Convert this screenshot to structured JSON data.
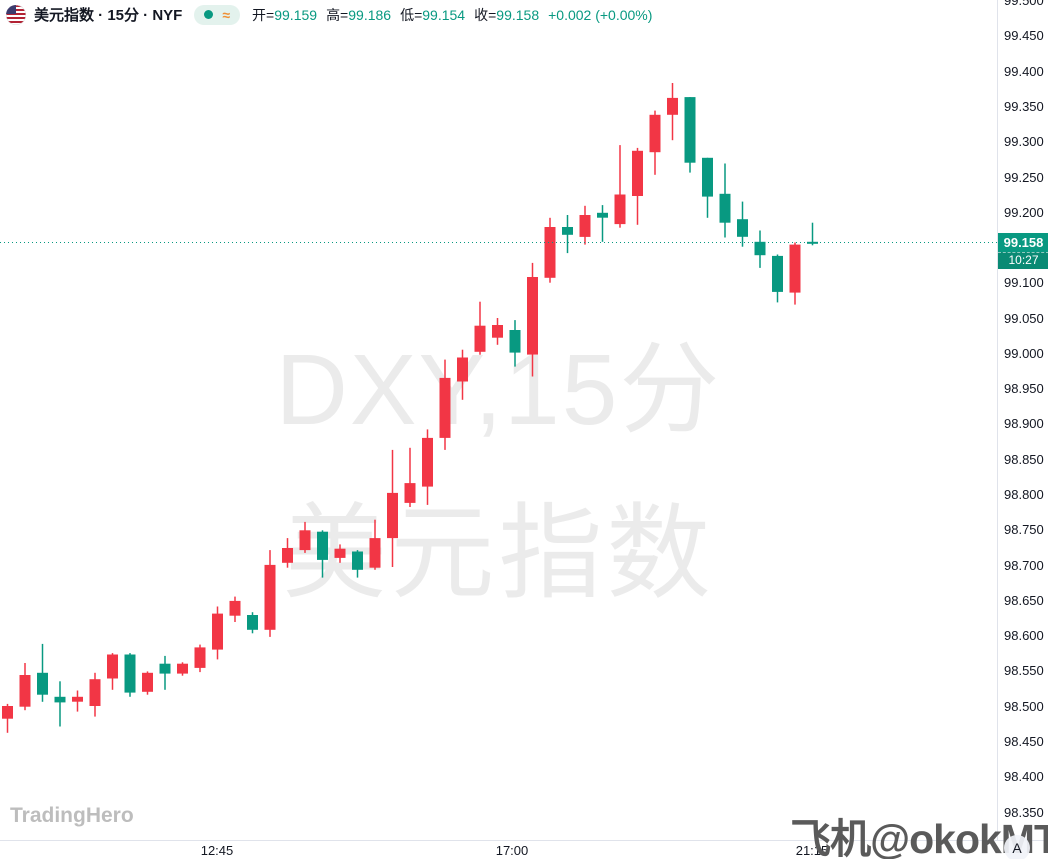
{
  "header": {
    "symbol_title": "美元指数 · 15分 · NYF",
    "approx_symbol": "≈",
    "ohlc": {
      "open_label": "开=",
      "open": "99.159",
      "high_label": "高=",
      "high": "99.186",
      "low_label": "低=",
      "low": "99.154",
      "close_label": "收=",
      "close": "99.158",
      "change": "+0.002 (+0.00%)"
    }
  },
  "watermark": {
    "line1": "DXY,15分",
    "line2": "美元指数"
  },
  "brand_watermark": "TradingHero",
  "overlay_watermark": "飞机@okokMT",
  "auto_button_label": "A",
  "price_axis": {
    "labels": [
      "99.500",
      "99.450",
      "99.400",
      "99.350",
      "99.300",
      "99.250",
      "99.200",
      "99.100",
      "99.050",
      "99.000",
      "98.950",
      "98.900",
      "98.850",
      "98.800",
      "98.750",
      "98.700",
      "98.650",
      "98.600",
      "98.550",
      "98.500",
      "98.450",
      "98.400",
      "98.350"
    ],
    "badge": {
      "price": "99.158",
      "countdown": "10:27"
    }
  },
  "time_axis": {
    "ticks": [
      {
        "label": "12:45",
        "x": 217
      },
      {
        "label": "17:00",
        "x": 512
      },
      {
        "label": "21:15",
        "x": 812
      }
    ]
  },
  "colors": {
    "up": "#f23645",
    "down": "#089981",
    "accent": "#089981",
    "badge_bg": "#089981",
    "countdown_bg": "#0a8a74",
    "axis_border": "#e0e3eb"
  },
  "chart_data": {
    "type": "candlestick",
    "title": "美元指数 (DXY) 15分 · NYF",
    "convention": "red = up bar, teal = down bar",
    "up_color": "#f23645",
    "down_color": "#089981",
    "last_price": 99.158,
    "last_bar_countdown": "10:27",
    "y_ticks": [
      98.35,
      98.4,
      98.45,
      98.5,
      98.55,
      98.6,
      98.65,
      98.7,
      98.75,
      98.8,
      98.85,
      98.9,
      98.95,
      99.0,
      99.05,
      99.1,
      99.2,
      99.25,
      99.3,
      99.35,
      99.4,
      99.45,
      99.5
    ],
    "y_range_visible": [
      98.32,
      99.51
    ],
    "x_tick_labels": [
      "12:45",
      "17:00",
      "21:15"
    ],
    "candles": [
      [
        98.483,
        98.504,
        98.463,
        98.501
      ],
      [
        98.5,
        98.562,
        98.495,
        98.545
      ],
      [
        98.548,
        98.589,
        98.507,
        98.517
      ],
      [
        98.514,
        98.536,
        98.472,
        98.506
      ],
      [
        98.507,
        98.523,
        98.493,
        98.514
      ],
      [
        98.501,
        98.548,
        98.486,
        98.539
      ],
      [
        98.54,
        98.576,
        98.524,
        98.574
      ],
      [
        98.574,
        98.576,
        98.514,
        98.52
      ],
      [
        98.521,
        98.55,
        98.517,
        98.548
      ],
      [
        98.561,
        98.572,
        98.524,
        98.547
      ],
      [
        98.547,
        98.563,
        98.544,
        98.561
      ],
      [
        98.555,
        98.588,
        98.549,
        98.584
      ],
      [
        98.581,
        98.642,
        98.567,
        98.632
      ],
      [
        98.629,
        98.656,
        98.62,
        98.65
      ],
      [
        98.63,
        98.634,
        98.604,
        98.609
      ],
      [
        98.609,
        98.722,
        98.599,
        98.701
      ],
      [
        98.704,
        98.739,
        98.697,
        98.725
      ],
      [
        98.722,
        98.762,
        98.718,
        98.75
      ],
      [
        98.748,
        98.75,
        98.683,
        98.708
      ],
      [
        98.711,
        98.73,
        98.704,
        98.724
      ],
      [
        98.72,
        98.722,
        98.683,
        98.694
      ],
      [
        98.697,
        98.765,
        98.694,
        98.739
      ],
      [
        98.739,
        98.864,
        98.698,
        98.803
      ],
      [
        98.789,
        98.867,
        98.783,
        98.817
      ],
      [
        98.812,
        98.893,
        98.786,
        98.881
      ],
      [
        98.881,
        98.992,
        98.864,
        98.966
      ],
      [
        98.961,
        99.006,
        98.935,
        98.995
      ],
      [
        99.003,
        99.074,
        98.999,
        99.04
      ],
      [
        99.023,
        99.051,
        99.013,
        99.041
      ],
      [
        99.034,
        99.048,
        98.982,
        99.002
      ],
      [
        98.999,
        99.129,
        98.968,
        99.109
      ],
      [
        99.108,
        99.193,
        99.101,
        99.18
      ],
      [
        99.18,
        99.197,
        99.143,
        99.169
      ],
      [
        99.166,
        99.21,
        99.155,
        99.197
      ],
      [
        99.2,
        99.211,
        99.159,
        99.193
      ],
      [
        99.184,
        99.296,
        99.179,
        99.226
      ],
      [
        99.224,
        99.292,
        99.183,
        99.288
      ],
      [
        99.286,
        99.345,
        99.254,
        99.339
      ],
      [
        99.339,
        99.384,
        99.303,
        99.363
      ],
      [
        99.364,
        99.364,
        99.257,
        99.271
      ],
      [
        99.278,
        99.278,
        99.193,
        99.223
      ],
      [
        99.227,
        99.27,
        99.165,
        99.186
      ],
      [
        99.191,
        99.216,
        99.152,
        99.166
      ],
      [
        99.159,
        99.175,
        99.122,
        99.14
      ],
      [
        99.139,
        99.141,
        99.073,
        99.088
      ],
      [
        99.087,
        99.158,
        99.07,
        99.155
      ],
      [
        99.159,
        99.186,
        99.154,
        99.158
      ]
    ]
  }
}
